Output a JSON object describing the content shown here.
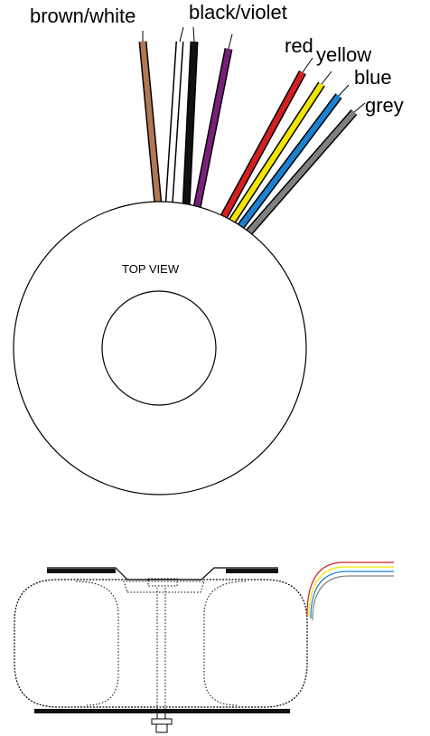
{
  "labels": {
    "brown_white": "brown/white",
    "black_violet": "black/violet",
    "red": "red",
    "yellow": "yellow",
    "blue": "blue",
    "grey": "grey",
    "top_view": "TOP VIEW"
  },
  "wire_colors": {
    "brown": "#b07850",
    "white": "#ffffff",
    "black": "#111111",
    "violet": "#7a1f7a",
    "red": "#d42020",
    "yellow": "#f2e600",
    "blue": "#1a82d0",
    "grey": "#808080"
  }
}
